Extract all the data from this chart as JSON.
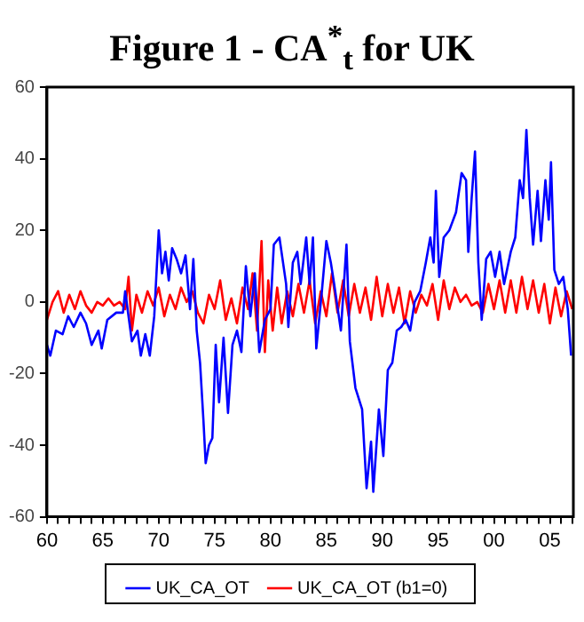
{
  "chart_data": {
    "type": "line",
    "title": "Figure 1 - CA$^{*}$$_{t}$ for UK",
    "xlim": [
      1960,
      2007.1
    ],
    "xticks": [
      {
        "value": 1960,
        "label": "60"
      },
      {
        "value": 1961,
        "label": null
      },
      {
        "value": 1962,
        "label": null
      },
      {
        "value": 1963,
        "label": null
      },
      {
        "value": 1964,
        "label": null
      },
      {
        "value": 1965,
        "label": "65"
      },
      {
        "value": 1966,
        "label": null
      },
      {
        "value": 1967,
        "label": null
      },
      {
        "value": 1968,
        "label": null
      },
      {
        "value": 1969,
        "label": null
      },
      {
        "value": 1970,
        "label": "70"
      },
      {
        "value": 1971,
        "label": null
      },
      {
        "value": 1972,
        "label": null
      },
      {
        "value": 1973,
        "label": null
      },
      {
        "value": 1974,
        "label": null
      },
      {
        "value": 1975,
        "label": "75"
      },
      {
        "value": 1976,
        "label": null
      },
      {
        "value": 1977,
        "label": null
      },
      {
        "value": 1978,
        "label": null
      },
      {
        "value": 1979,
        "label": null
      },
      {
        "value": 1980,
        "label": "80"
      },
      {
        "value": 1981,
        "label": null
      },
      {
        "value": 1982,
        "label": null
      },
      {
        "value": 1983,
        "label": null
      },
      {
        "value": 1984,
        "label": null
      },
      {
        "value": 1985,
        "label": "85"
      },
      {
        "value": 1986,
        "label": null
      },
      {
        "value": 1987,
        "label": null
      },
      {
        "value": 1988,
        "label": null
      },
      {
        "value": 1989,
        "label": null
      },
      {
        "value": 1990,
        "label": "90"
      },
      {
        "value": 1991,
        "label": null
      },
      {
        "value": 1992,
        "label": null
      },
      {
        "value": 1993,
        "label": null
      },
      {
        "value": 1994,
        "label": null
      },
      {
        "value": 1995,
        "label": "95"
      },
      {
        "value": 1996,
        "label": null
      },
      {
        "value": 1997,
        "label": null
      },
      {
        "value": 1998,
        "label": null
      },
      {
        "value": 1999,
        "label": null
      },
      {
        "value": 2000,
        "label": "00"
      },
      {
        "value": 2001,
        "label": null
      },
      {
        "value": 2002,
        "label": null
      },
      {
        "value": 2003,
        "label": null
      },
      {
        "value": 2004,
        "label": null
      },
      {
        "value": 2005,
        "label": "05"
      },
      {
        "value": 2006,
        "label": null
      },
      {
        "value": 2007,
        "label": null
      }
    ],
    "ylim": [
      -60,
      60
    ],
    "yticks": [
      -60,
      -40,
      -20,
      0,
      20,
      40,
      60
    ],
    "grid": false,
    "legend": "bottom",
    "marker": "none",
    "line_style": "solid",
    "series": [
      {
        "name": "UK_CA_OT",
        "color": "#0000ff",
        "x": [
          1960,
          1960.3,
          1960.8,
          1961.4,
          1961.9,
          1962.4,
          1963,
          1963.5,
          1964,
          1964.6,
          1964.9,
          1965.4,
          1966.2,
          1966.8,
          1967,
          1967.6,
          1968.1,
          1968.4,
          1968.8,
          1969.2,
          1969.6,
          1970,
          1970.3,
          1970.6,
          1970.9,
          1971.2,
          1971.6,
          1972,
          1972.4,
          1972.8,
          1973.1,
          1973.4,
          1973.7,
          1974,
          1974.2,
          1974.5,
          1974.8,
          1975.1,
          1975.4,
          1975.8,
          1976.2,
          1976.6,
          1977,
          1977.4,
          1977.8,
          1978.2,
          1978.6,
          1979,
          1979.5,
          1980,
          1980.3,
          1980.8,
          1981.4,
          1981.6,
          1982,
          1982.4,
          1982.7,
          1983.2,
          1983.5,
          1983.8,
          1984.1,
          1984.6,
          1985,
          1985.4,
          1985.7,
          1986.3,
          1986.8,
          1987.1,
          1987.6,
          1988.2,
          1988.6,
          1989,
          1989.2,
          1989.7,
          1990.1,
          1990.5,
          1990.9,
          1991.3,
          1991.7,
          1992.1,
          1992.5,
          1992.9,
          1993.4,
          1993.9,
          1994.3,
          1994.6,
          1994.8,
          1995.1,
          1995.5,
          1996,
          1996.6,
          1997.1,
          1997.5,
          1997.7,
          1998,
          1998.3,
          1998.6,
          1998.9,
          1999.3,
          1999.7,
          2000.1,
          2000.5,
          2000.9,
          2001.5,
          2001.9,
          2002.3,
          2002.6,
          2002.9,
          2003.2,
          2003.5,
          2003.9,
          2004.2,
          2004.6,
          2004.9,
          2005.1,
          2005.4,
          2005.8,
          2006.2,
          2006.6,
          2006.9
        ],
        "values": [
          -12,
          -15,
          -8,
          -9,
          -4,
          -7,
          -3,
          -6,
          -12,
          -8,
          -13,
          -5,
          -3,
          -3,
          3,
          -11,
          -8,
          -15,
          -9,
          -15,
          -4,
          20,
          8,
          14,
          6,
          15,
          12,
          8,
          13,
          -2,
          12,
          -8,
          -17,
          -33,
          -45,
          -40,
          -38,
          -12,
          -28,
          -10,
          -31,
          -12,
          -8,
          -14,
          10,
          -4,
          8,
          -14,
          -5,
          -2,
          16,
          18,
          5,
          -7,
          11,
          14,
          5,
          18,
          5,
          18,
          -13,
          3,
          17,
          11,
          5,
          -8,
          16,
          -11,
          -24,
          -30,
          -52,
          -39,
          -53,
          -30,
          -43,
          -19,
          -17,
          -8,
          -7,
          -5,
          -8,
          0,
          3,
          11,
          18,
          11,
          31,
          7,
          18,
          20,
          25,
          36,
          34,
          14,
          29,
          42,
          11,
          -5,
          12,
          14,
          7,
          14,
          5,
          14,
          18,
          34,
          29,
          48,
          29,
          16,
          31,
          17,
          34,
          23,
          39,
          9,
          5,
          7,
          -2,
          -15
        ]
      },
      {
        "name": "UK_CA_OT (b1=0)",
        "color": "#ff0000",
        "x": [
          1960,
          1960.5,
          1961,
          1961.5,
          1962,
          1962.5,
          1963,
          1963.5,
          1964,
          1964.5,
          1965,
          1965.5,
          1966,
          1966.5,
          1967,
          1967.3,
          1967.6,
          1968,
          1968.5,
          1969,
          1969.5,
          1970,
          1970.5,
          1971,
          1971.5,
          1972,
          1972.5,
          1973,
          1973.5,
          1974,
          1974.5,
          1975,
          1975.5,
          1976,
          1976.5,
          1977,
          1977.5,
          1978,
          1978.4,
          1978.8,
          1979.2,
          1979.5,
          1979.8,
          1980.2,
          1980.6,
          1981,
          1981.5,
          1982,
          1982.5,
          1983,
          1983.5,
          1984,
          1984.5,
          1985,
          1985.5,
          1986,
          1986.5,
          1987,
          1987.5,
          1988,
          1988.5,
          1989,
          1989.5,
          1990,
          1990.5,
          1991,
          1991.5,
          1992,
          1992.5,
          1993,
          1993.5,
          1994,
          1994.5,
          1995,
          1995.5,
          1996,
          1996.5,
          1997,
          1997.5,
          1998,
          1998.5,
          1999,
          1999.5,
          2000,
          2000.5,
          2001,
          2001.5,
          2002,
          2002.5,
          2003,
          2003.5,
          2004,
          2004.5,
          2005,
          2005.5,
          2006,
          2006.5,
          2007
        ],
        "values": [
          -5,
          0,
          3,
          -3,
          2,
          -2,
          3,
          -1,
          -3,
          0,
          -1,
          1,
          -1,
          0,
          -2,
          7,
          -8,
          2,
          -3,
          3,
          -1,
          4,
          -4,
          2,
          -2,
          4,
          0,
          3,
          -3,
          -6,
          2,
          -2,
          6,
          -5,
          1,
          -6,
          4,
          -2,
          8,
          -8,
          17,
          -14,
          6,
          -8,
          4,
          -6,
          3,
          -4,
          5,
          -3,
          6,
          -6,
          3,
          -4,
          8,
          -3,
          6,
          -4,
          5,
          -3,
          4,
          -5,
          7,
          -4,
          5,
          -3,
          4,
          -6,
          3,
          -3,
          2,
          -1,
          5,
          -5,
          6,
          -2,
          4,
          0,
          2,
          -1,
          0,
          -3,
          5,
          -2,
          6,
          -3,
          6,
          -3,
          7,
          -2,
          6,
          -3,
          5,
          -6,
          4,
          -4,
          3,
          -2
        ]
      }
    ]
  }
}
